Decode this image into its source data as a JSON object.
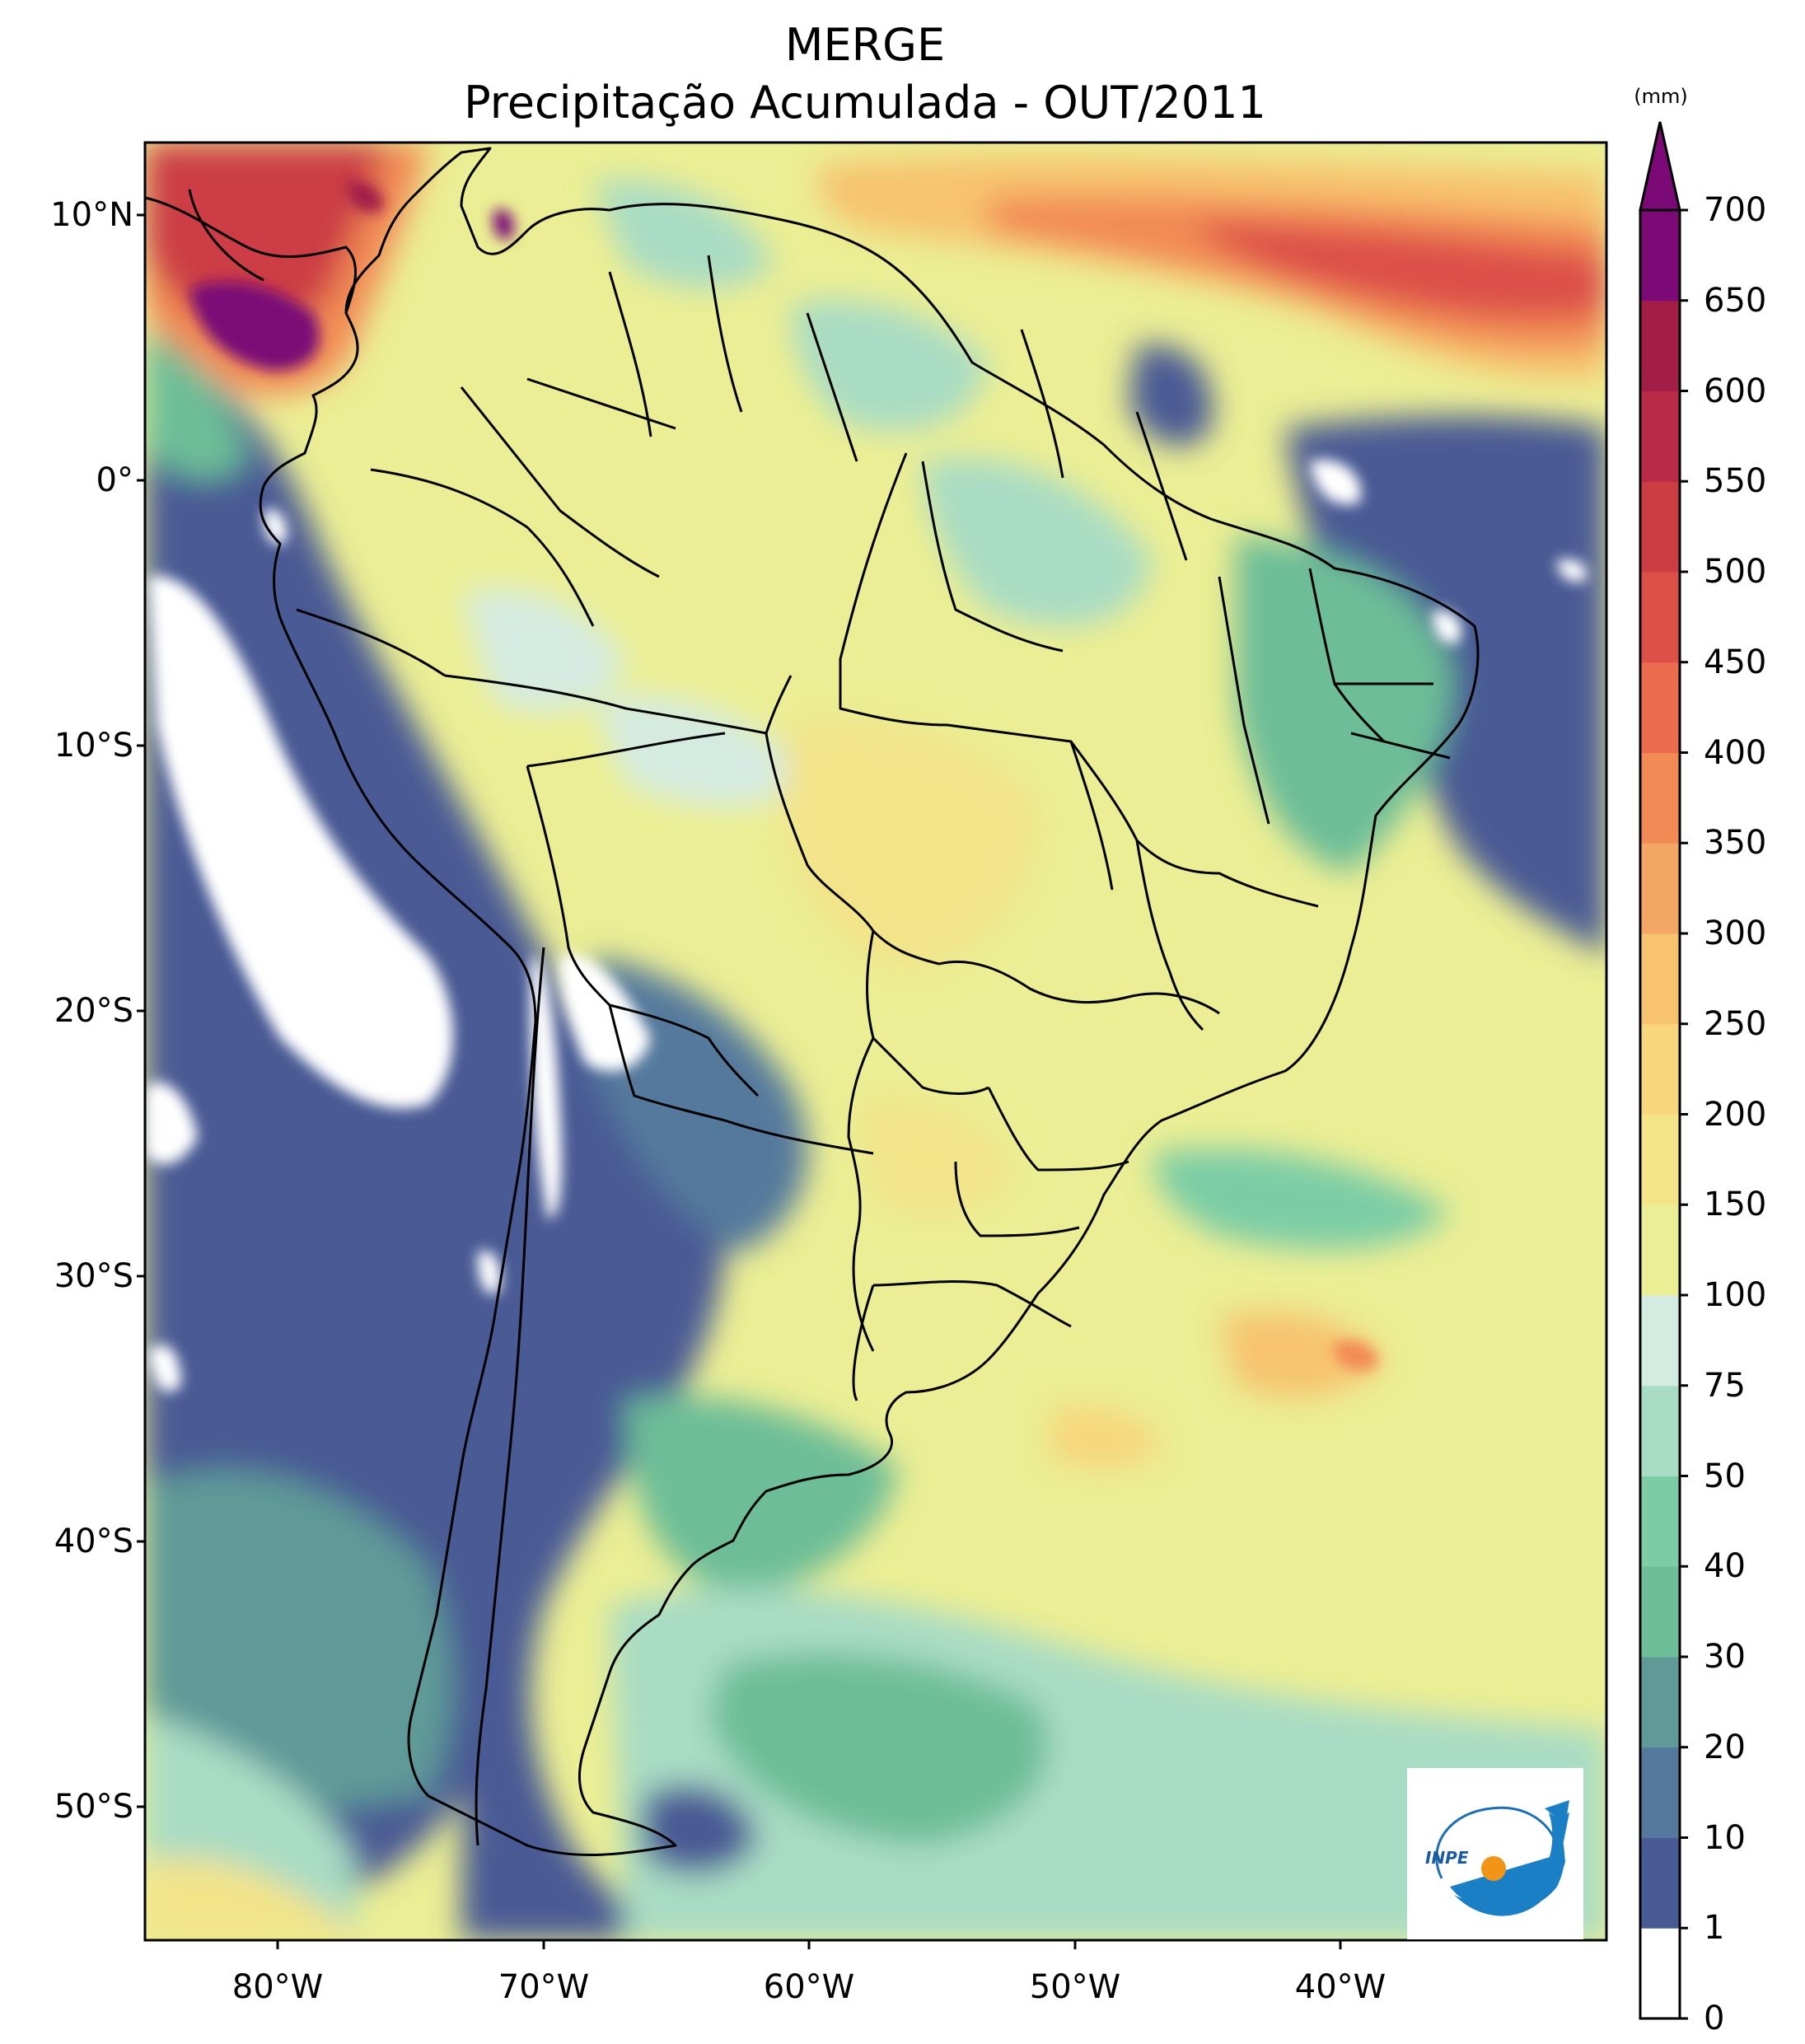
{
  "map": {
    "title": "MERGE",
    "subtitle": "Precipitação Acumulada - OUT/2011",
    "latitude_labels": [
      "10°N",
      "0°",
      "10°S",
      "20°S",
      "30°S",
      "40°S",
      "50°S"
    ],
    "longitude_labels": [
      "80°W",
      "70°W",
      "60°W",
      "50°W",
      "40°W"
    ],
    "region": "South America",
    "extent": {
      "lon_min": -85,
      "lon_max": -30,
      "lat_min": -56,
      "lat_max": 13
    }
  },
  "colorbar": {
    "unit": "(mm)",
    "levels": [
      "0",
      "1",
      "10",
      "20",
      "30",
      "40",
      "50",
      "75",
      "100",
      "150",
      "200",
      "250",
      "300",
      "350",
      "400",
      "450",
      "500",
      "550",
      "600",
      "650",
      "700"
    ],
    "colors": [
      "#ffffff",
      "#4a5a94",
      "#55799c",
      "#5f9a98",
      "#6dbd98",
      "#7ccda6",
      "#a9dcc4",
      "#d4ebe2",
      "#ebee94",
      "#f3e389",
      "#f7d67d",
      "#f7c36f",
      "#f4a764",
      "#f28a55",
      "#ea6b4e",
      "#dd5048",
      "#cc3c45",
      "#b82a45",
      "#a21d48",
      "#7b0a76"
    ],
    "extend_max_color": "#7b0a76"
  },
  "logo": {
    "text": "INPE"
  }
}
